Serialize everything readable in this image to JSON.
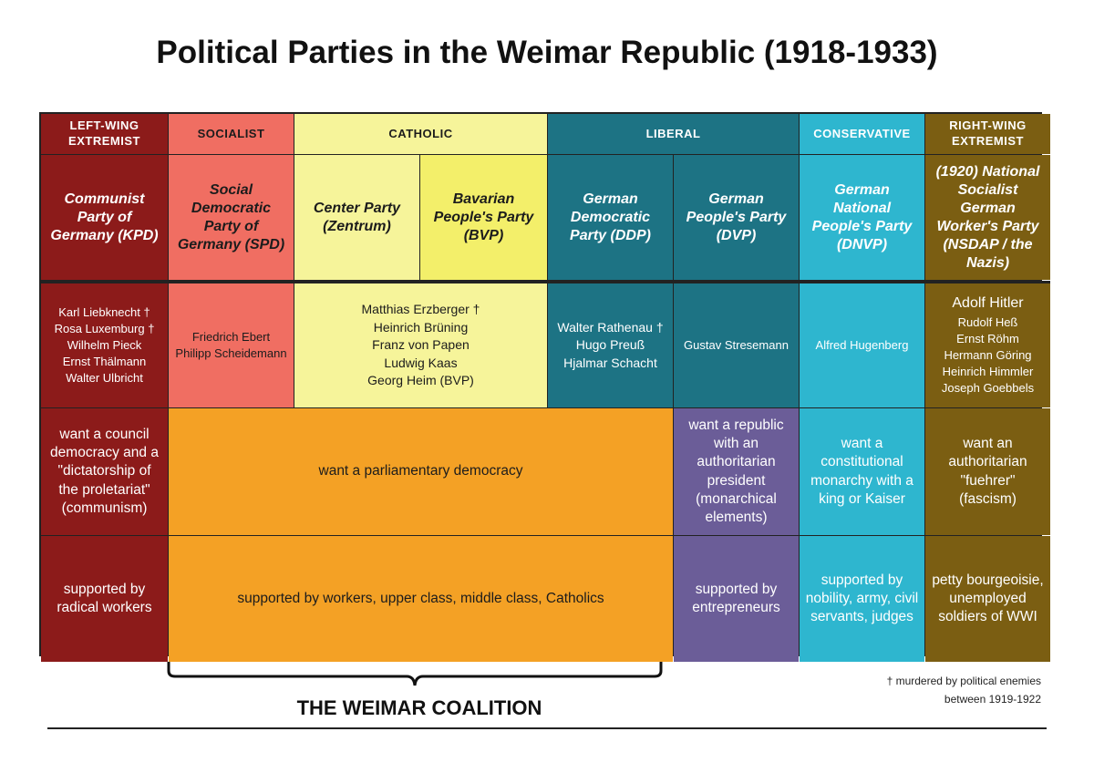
{
  "title": "Political Parties in the Weimar Republic (1918-1933)",
  "colors": {
    "left_wing": "#8c1b1a",
    "socialist": "#f06e62",
    "catholic": "#f6f49a",
    "liberal": "#1d7384",
    "conservative": "#2eb6cf",
    "right_wing": "#7b5e12",
    "weimar_coalition": "#f4a125",
    "dvp_row": "#6b5d98"
  },
  "headers": {
    "left": "Left-wing extremist",
    "socialist": "Socialist",
    "catholic": "Catholic",
    "liberal": "Liberal",
    "conservative": "Conservative",
    "right": "Right-wing extremist"
  },
  "parties": {
    "kpd": "Communist Party of Germany (KPD)",
    "spd": "Social Democratic Party of Germany (SPD)",
    "zentrum": "Center Party (Zentrum)",
    "bvp": "Bavarian People's Party (BVP)",
    "ddp": "German Democratic Party (DDP)",
    "dvp": "German People's Party (DVP)",
    "dnvp": "German National People's Party (DNVP)",
    "nsdap": "(1920) National Socialist German Worker's Party (NSDAP / the Nazis)"
  },
  "people": {
    "kpd": "Karl Liebknecht †\nRosa Luxemburg †\nWilhelm Pieck\nErnst Thälmann\nWalter Ulbricht",
    "spd": "Friedrich Ebert\nPhilipp Scheidemann",
    "catholic": "Matthias Erzberger †\nHeinrich Brüning\nFranz von Papen\nLudwig Kaas\nGeorg Heim (BVP)",
    "ddp": "Walter Rathenau †\nHugo Preuß\nHjalmar Schacht",
    "dvp": "Gustav Stresemann",
    "dnvp": "Alfred Hugenberg",
    "nsdap_lead": "Adolf Hitler",
    "nsdap": "Rudolf Heß\nErnst Röhm\nHermann Göring\nHeinrich Himmler\nJoseph Goebbels"
  },
  "goals": {
    "kpd": "want a council democracy and a \"dictatorship of the proletariat\" (communism)",
    "coalition": "want a parliamentary democracy",
    "dvp": "want a republic with an authoritarian president (monarchical elements)",
    "dnvp": "want a constitutional monarchy with a king or Kaiser",
    "nsdap": "want an authoritarian \"fuehrer\" (fascism)"
  },
  "support": {
    "kpd": "supported by radical workers",
    "coalition": "supported by workers, upper class, middle class, Catholics",
    "dvp": "supported by entrepreneurs",
    "dnvp": "supported by nobility, army, civil servants, judges",
    "nsdap": "petty bourgeoisie, unemployed soldiers of WWI"
  },
  "coalition_label": "THE WEIMAR COALITION",
  "footnote": {
    "line1": "† murdered by political enemies",
    "line2": "between 1919-1922"
  }
}
